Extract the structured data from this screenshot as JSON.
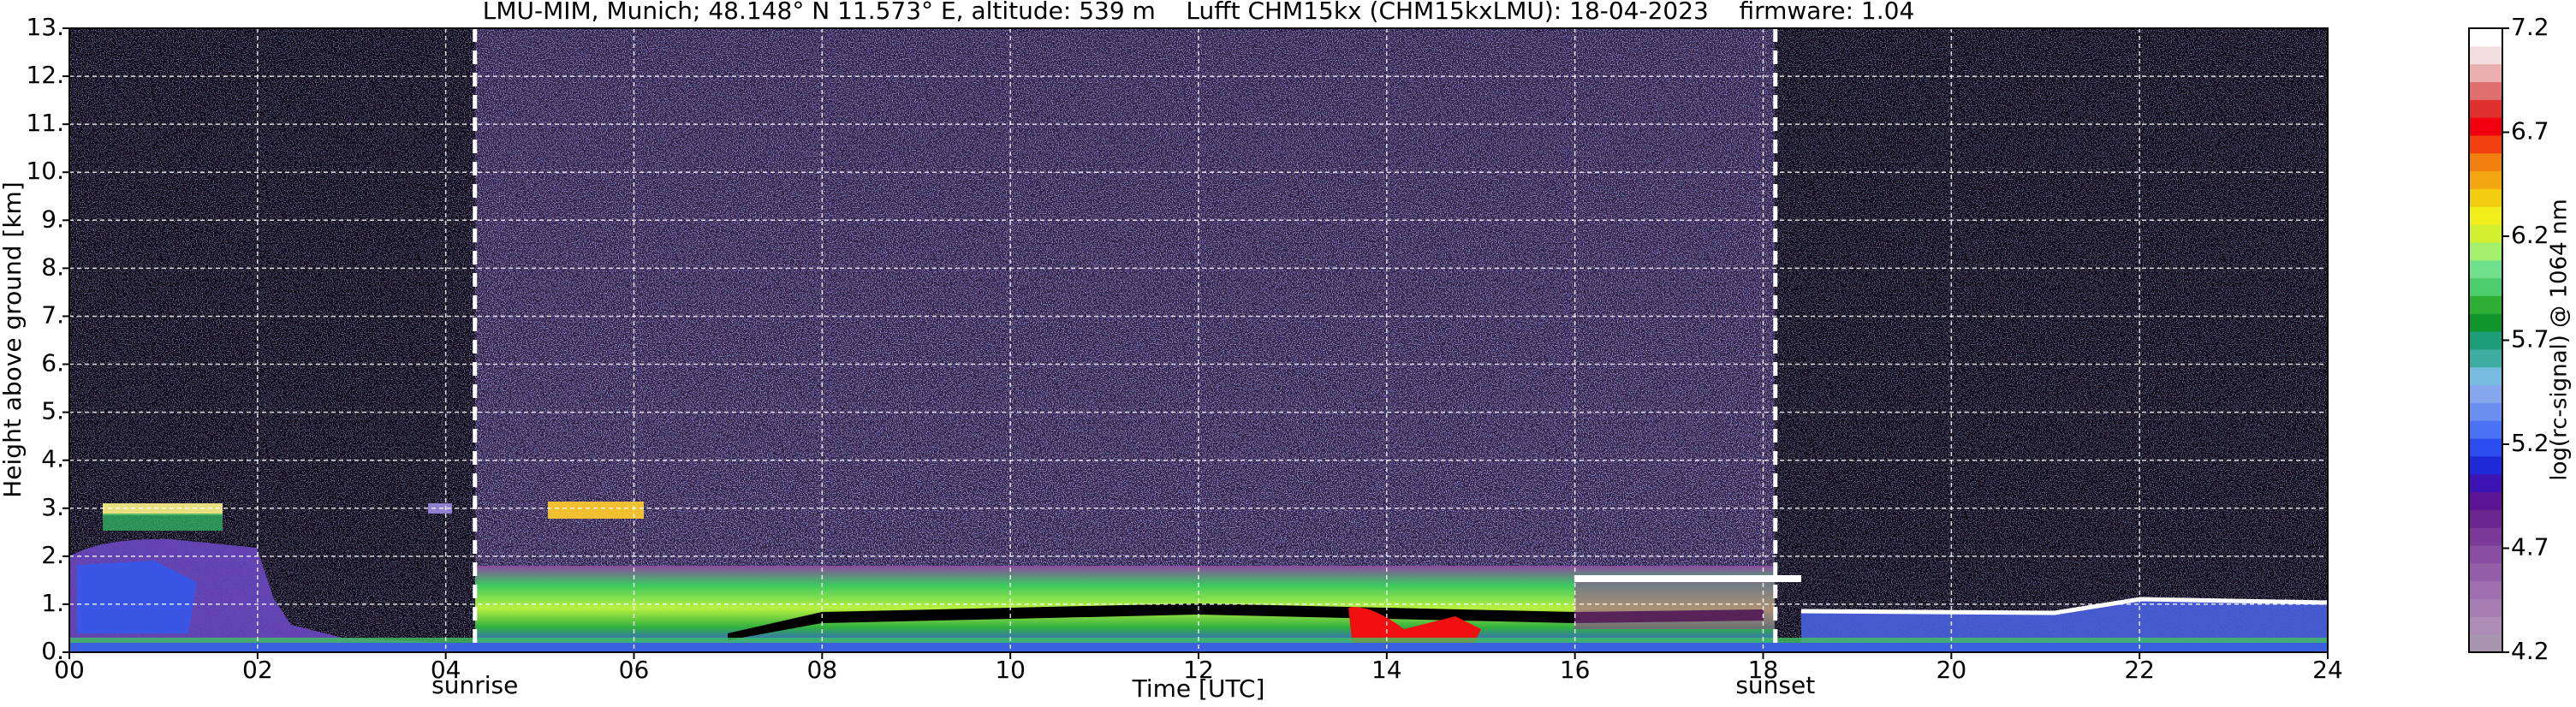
{
  "chart_data": {
    "type": "heatmap",
    "title": "LMU-MIM, Munich; 48.148° N 11.573° E, altitude: 539 m    Lufft CHM15kx (CHM15kxLMU): 18-04-2023    firmware: 1.04",
    "x_label": "Time [UTC]",
    "y_label": "Height above ground [km]",
    "xlim": [
      0,
      24
    ],
    "xticks": [
      {
        "value": 0,
        "label": "00"
      },
      {
        "value": 2,
        "label": "02"
      },
      {
        "value": 4,
        "label": "04"
      },
      {
        "value": 6,
        "label": "06"
      },
      {
        "value": 8,
        "label": "08"
      },
      10,
      12,
      14,
      16,
      18,
      20,
      22,
      24
    ],
    "ylim": [
      0,
      13
    ],
    "yticks": [
      {
        "value": 0,
        "label": "0."
      },
      {
        "value": 1,
        "label": "1."
      },
      {
        "value": 2,
        "label": "2."
      },
      {
        "value": 3,
        "label": "3."
      },
      {
        "value": 4,
        "label": "4."
      },
      {
        "value": 5,
        "label": "5."
      },
      {
        "value": 6,
        "label": "6."
      },
      {
        "value": 7,
        "label": "7."
      },
      {
        "value": 8,
        "label": "8."
      },
      {
        "value": 9,
        "label": "9."
      },
      {
        "value": 10,
        "label": "10."
      },
      {
        "value": 11,
        "label": "11."
      },
      {
        "value": 12,
        "label": "12."
      },
      {
        "value": 13,
        "label": "13."
      }
    ],
    "grid": true,
    "annotations": [
      {
        "x": 4.31,
        "text": "sunrise"
      },
      {
        "x": 18.13,
        "text": "sunset"
      }
    ],
    "colorbar": {
      "label": "log(rc-signal) @ 1064 nm",
      "lim": [
        4.2,
        7.2
      ],
      "ticks": [
        4.2,
        4.7,
        5.2,
        5.7,
        6.2,
        6.7,
        7.2
      ],
      "colors": [
        "#a896b0",
        "#ad8cb6",
        "#a77db3",
        "#9e6eae",
        "#945ea8",
        "#894da1",
        "#7c3a98",
        "#6c2690",
        "#5a1494",
        "#3c14b4",
        "#1e2ad8",
        "#2c4cf0",
        "#4a72f2",
        "#6a8ef0",
        "#86a6ee",
        "#78bce0",
        "#3eaca0",
        "#1c9c78",
        "#12942c",
        "#2eae34",
        "#4ccc6c",
        "#70e08c",
        "#a2f06c",
        "#d2f030",
        "#f2ee1c",
        "#f2cc10",
        "#f2a610",
        "#f28010",
        "#f24010",
        "#f20010",
        "#e03030",
        "#e07070",
        "#eab0b0",
        "#f2dede",
        "#ffffff"
      ]
    }
  }
}
